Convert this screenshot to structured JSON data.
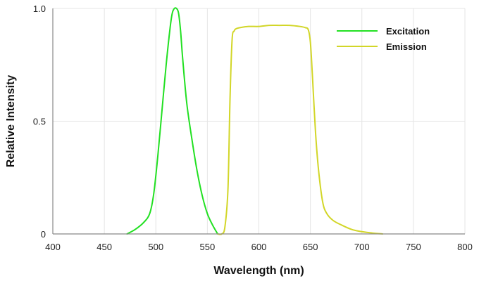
{
  "chart_data": {
    "type": "line",
    "title": "",
    "xlabel": "Wavelength (nm)",
    "ylabel": "Relative Intensity",
    "xlim": [
      400,
      800
    ],
    "ylim": [
      0,
      1.0
    ],
    "x_ticks": [
      400,
      450,
      500,
      550,
      600,
      650,
      700,
      750,
      800
    ],
    "y_ticks": [
      0,
      0.5,
      1.0
    ],
    "y_tick_labels": [
      "0",
      "0.5",
      "1.0"
    ],
    "grid": true,
    "legend_position": "top-right",
    "series": [
      {
        "name": "Excitation",
        "color": "#22e022",
        "x": [
          472,
          480,
          488,
          494,
          498,
          502,
          506,
          510,
          514,
          516,
          518,
          520,
          522,
          524,
          526,
          530,
          535,
          540,
          545,
          550,
          555,
          560
        ],
        "y": [
          0.0,
          0.02,
          0.05,
          0.09,
          0.18,
          0.35,
          0.55,
          0.75,
          0.92,
          0.98,
          1.0,
          1.0,
          0.98,
          0.9,
          0.78,
          0.58,
          0.42,
          0.28,
          0.17,
          0.09,
          0.04,
          0.0
        ]
      },
      {
        "name": "Emission",
        "color": "#d2d628",
        "x": [
          560,
          564,
          567,
          570,
          572,
          574,
          576,
          578,
          582,
          590,
          600,
          610,
          620,
          630,
          640,
          645,
          648,
          650,
          652,
          655,
          658,
          662,
          666,
          672,
          680,
          690,
          700,
          710,
          720
        ],
        "y": [
          0.0,
          0.0,
          0.03,
          0.2,
          0.6,
          0.86,
          0.9,
          0.91,
          0.915,
          0.92,
          0.92,
          0.925,
          0.925,
          0.925,
          0.92,
          0.915,
          0.905,
          0.85,
          0.7,
          0.45,
          0.28,
          0.14,
          0.09,
          0.06,
          0.04,
          0.02,
          0.01,
          0.004,
          0.0
        ]
      }
    ]
  }
}
